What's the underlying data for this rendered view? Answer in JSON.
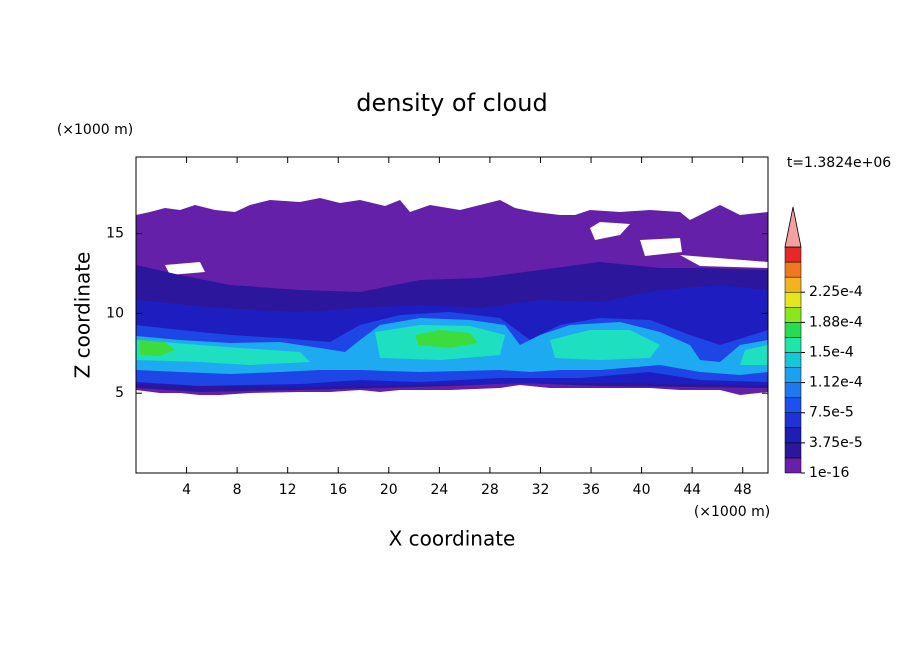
{
  "chart_data": {
    "type": "contour",
    "title": "density of cloud",
    "x_label": "X coordinate",
    "y_label": "Z coordinate",
    "x_unit": "(×1000 m)",
    "y_unit": "(×1000 m)",
    "annotation": "t=1.3824e+06",
    "xlim": [
      0,
      50
    ],
    "ylim": [
      0,
      19.8
    ],
    "xticks": [
      4,
      8,
      12,
      16,
      20,
      24,
      28,
      32,
      36,
      40,
      44,
      48
    ],
    "yticks": [
      5,
      10,
      15
    ],
    "colorbar": {
      "levels": [
        {
          "value": 1e-16,
          "label": "1e-16"
        },
        {
          "value": 3.75e-05,
          "label": "3.75e-5"
        },
        {
          "value": 7.5e-05,
          "label": "7.5e-5"
        },
        {
          "value": 0.000112,
          "label": "1.12e-4"
        },
        {
          "value": 0.00015,
          "label": "1.5e-4"
        },
        {
          "value": 0.000188,
          "label": "1.88e-4"
        },
        {
          "value": 0.000225,
          "label": "2.25e-4"
        }
      ],
      "colors": [
        "#6a1fa8",
        "#2c169c",
        "#1e1eb4",
        "#1e32d8",
        "#1e50f0",
        "#1e78f0",
        "#1ea0f0",
        "#14c8d8",
        "#1ee6aa",
        "#28dc50",
        "#8ce61e",
        "#e6e61e",
        "#f0b41e",
        "#f0781e",
        "#e62828"
      ],
      "extend_color": "#f4a0a0"
    }
  }
}
